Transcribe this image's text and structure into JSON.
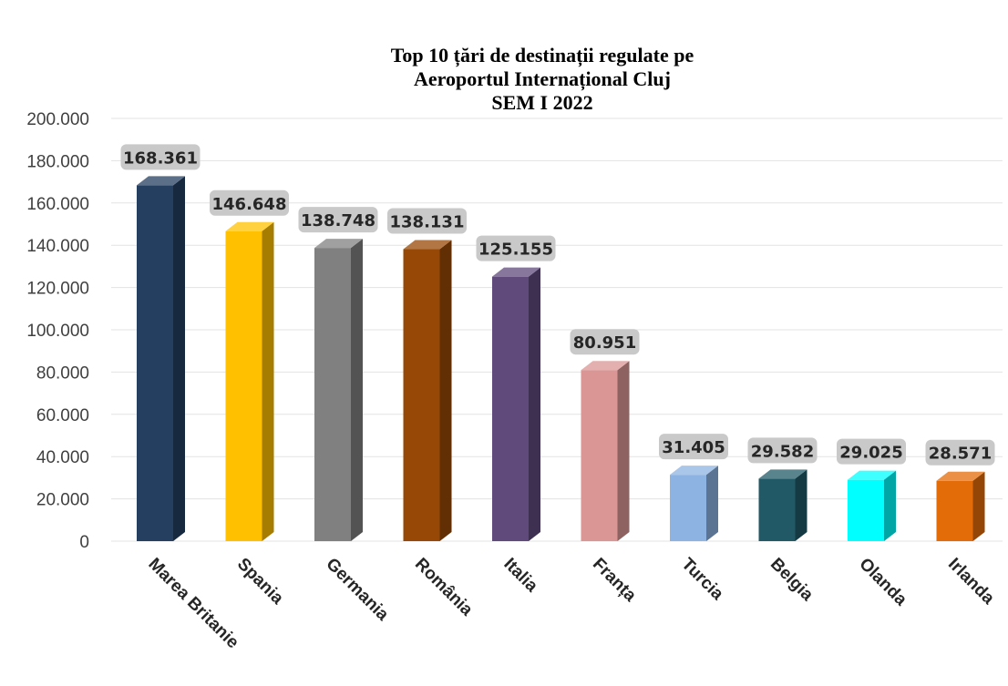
{
  "chart_data": {
    "type": "bar",
    "title_lines": [
      "Top 10 țări de destinații regulate pe",
      "Aeroportul Internațional Cluj",
      "SEM I 2022"
    ],
    "xlabel": "",
    "ylabel": "",
    "categories": [
      "Marea Britanie",
      "Spania",
      "Germania",
      "România",
      "Italia",
      "Franța",
      "Turcia",
      "Belgia",
      "Olanda",
      "Irlanda"
    ],
    "values": [
      168361,
      146648,
      138748,
      138131,
      125155,
      80951,
      31405,
      29582,
      29025,
      28571
    ],
    "data_labels": [
      "168.361",
      "146.648",
      "138.748",
      "138.131",
      "125.155",
      "80.951",
      "31.405",
      "29.582",
      "29.025",
      "28.571"
    ],
    "bar_colors": [
      "#243f60",
      "#ffc000",
      "#808080",
      "#974806",
      "#604a7b",
      "#d99694",
      "#8db3e2",
      "#215967",
      "#00ffff",
      "#e36c09"
    ],
    "ylim": [
      0,
      200000
    ],
    "yticks": [
      0,
      20000,
      40000,
      60000,
      80000,
      100000,
      120000,
      140000,
      160000,
      180000,
      200000
    ],
    "ytick_labels": [
      "0",
      "20.000",
      "40.000",
      "60.000",
      "80.000",
      "100.000",
      "120.000",
      "140.000",
      "160.000",
      "180.000",
      "200.000"
    ],
    "grid": true,
    "legend": "none",
    "style": "3d-column"
  }
}
